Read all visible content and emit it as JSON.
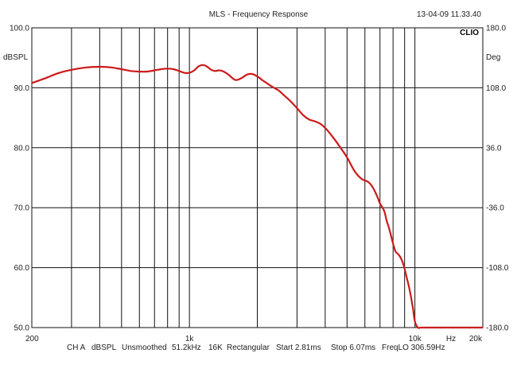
{
  "header": {
    "title": "MLS - Frequency Response",
    "timestamp": "13-04-09 11.33.40",
    "brand": "CLIO"
  },
  "footer": {
    "channel": "CH A",
    "unit": "dBSPL",
    "smoothing": "Unsmoothed",
    "sample_rate": "51.2kHz",
    "size": "16K",
    "window": "Rectangular",
    "start": "Start 2.81ms",
    "stop": "Stop 6.07ms",
    "freqlo": "FreqLO 306.59Hz"
  },
  "colors": {
    "curve": "#cc1a1a",
    "grid": "#111111",
    "background": "#ffffff"
  },
  "chart_data": {
    "type": "line",
    "title": "MLS - Frequency Response",
    "xlabel": "Hz",
    "ylabel_left": "dBSPL",
    "ylabel_right": "Deg",
    "x_scale": "log",
    "xlim": [
      200,
      20000
    ],
    "ylim_left": [
      50,
      100
    ],
    "ylim_right": [
      -180,
      180
    ],
    "grid": true,
    "x_tick_labels": [
      {
        "value": 200,
        "label": "200"
      },
      {
        "value": 1000,
        "label": "1k"
      },
      {
        "value": 10000,
        "label": "10k"
      },
      {
        "value": 20000,
        "label": "20k"
      }
    ],
    "x_gridlines": [
      200,
      300,
      400,
      500,
      600,
      700,
      800,
      900,
      1000,
      2000,
      3000,
      4000,
      5000,
      6000,
      7000,
      8000,
      9000,
      10000,
      20000
    ],
    "y_left_ticks": [
      {
        "value": 100,
        "label": "100.0"
      },
      {
        "value": 90,
        "label": "90.0"
      },
      {
        "value": 80,
        "label": "80.0"
      },
      {
        "value": 70,
        "label": "70.0"
      },
      {
        "value": 60,
        "label": "60.0"
      },
      {
        "value": 50,
        "label": "50.0"
      }
    ],
    "y_right_ticks": [
      {
        "value": 180,
        "label": "180.0"
      },
      {
        "value": 108,
        "label": "108.0"
      },
      {
        "value": 36,
        "label": "36.0"
      },
      {
        "value": -36,
        "label": "-36.0"
      },
      {
        "value": -108,
        "label": "-108.0"
      },
      {
        "value": -180,
        "label": "-180.0"
      }
    ],
    "series": [
      {
        "x": [
          200,
          230,
          260,
          300,
          350,
          400,
          450,
          500,
          550,
          600,
          650,
          700,
          750,
          800,
          850,
          900,
          950,
          1000,
          1050,
          1100,
          1150,
          1200,
          1250,
          1300,
          1350,
          1400,
          1450,
          1500,
          1600,
          1700,
          1800,
          1900,
          2000,
          2100,
          2200,
          2300,
          2400,
          2500,
          2600,
          2800,
          3000,
          3200,
          3400,
          3600,
          3800,
          4000,
          4300,
          4600,
          5000,
          5400,
          5800,
          6200,
          6500,
          6800,
          7000,
          7300,
          7500,
          7700,
          8000,
          8200,
          8400,
          8600,
          8800,
          9000,
          9200,
          9400,
          9600,
          9800,
          10000,
          10300,
          10600,
          11000,
          12000,
          14000,
          16000,
          18000,
          20000
        ],
        "y": [
          90.8,
          91.6,
          92.4,
          93.0,
          93.4,
          93.5,
          93.4,
          93.1,
          92.8,
          92.7,
          92.7,
          92.9,
          93.1,
          93.2,
          93.1,
          92.8,
          92.5,
          92.5,
          92.9,
          93.6,
          93.8,
          93.5,
          93.0,
          92.8,
          92.9,
          92.8,
          92.5,
          92.1,
          91.3,
          91.6,
          92.2,
          92.3,
          91.9,
          91.3,
          90.8,
          90.3,
          89.9,
          89.5,
          88.9,
          87.8,
          86.6,
          85.4,
          84.7,
          84.4,
          84.0,
          83.3,
          81.9,
          80.4,
          78.4,
          76.1,
          74.8,
          74.3,
          73.4,
          71.9,
          70.7,
          69.5,
          67.8,
          66.4,
          64.0,
          62.7,
          62.3,
          61.8,
          61.0,
          59.8,
          58.3,
          56.9,
          55.2,
          53.2,
          51.0,
          50.0,
          50.0,
          50.0,
          50.0,
          50.0,
          50.0,
          50.0,
          50.0
        ]
      }
    ]
  }
}
